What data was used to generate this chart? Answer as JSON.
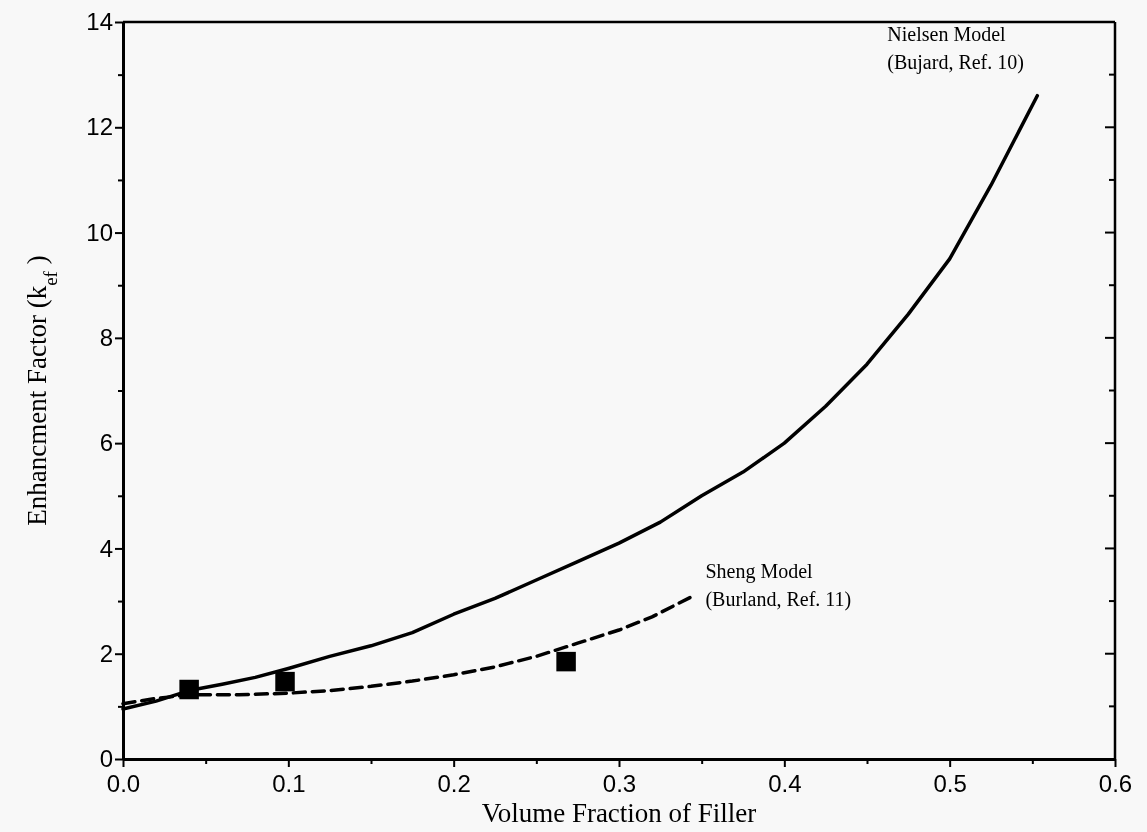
{
  "chart_data": {
    "type": "line",
    "xlabel": "Volume Fraction of Filler",
    "ylabel": "Enhancment Factor (k$_{ef}$ )",
    "xlim": [
      0,
      0.6
    ],
    "ylim": [
      0,
      14
    ],
    "xticks": [
      {
        "value": 0,
        "label": "0.0"
      },
      {
        "value": 0.05,
        "label": null
      },
      {
        "value": 0.1,
        "label": "0.1"
      },
      {
        "value": 0.15,
        "label": null
      },
      {
        "value": 0.2,
        "label": "0.2"
      },
      {
        "value": 0.25,
        "label": null
      },
      {
        "value": 0.3,
        "label": "0.3"
      },
      {
        "value": 0.35,
        "label": null
      },
      {
        "value": 0.4,
        "label": "0.4"
      },
      {
        "value": 0.45,
        "label": null
      },
      {
        "value": 0.5,
        "label": "0.5"
      },
      {
        "value": 0.55,
        "label": null
      },
      {
        "value": 0.6,
        "label": "0.6"
      }
    ],
    "yticks": [
      0,
      {
        "value": 1,
        "label": null
      },
      2,
      {
        "value": 3,
        "label": null
      },
      4,
      {
        "value": 5,
        "label": null
      },
      6,
      {
        "value": 7,
        "label": null
      },
      8,
      {
        "value": 9,
        "label": null
      },
      10,
      {
        "value": 11,
        "label": null
      },
      12,
      {
        "value": 13,
        "label": null
      },
      14
    ],
    "grid": false,
    "legend": false,
    "series": [
      {
        "name": "Nielsen Model\n(Bujard, Ref. 10)",
        "color": "#000000",
        "line_style": "solid",
        "marker": "none",
        "x": [
          0,
          0.02,
          0.04,
          0.06,
          0.08,
          0.1,
          0.125,
          0.15,
          0.175,
          0.2,
          0.225,
          0.25,
          0.275,
          0.3,
          0.325,
          0.35,
          0.375,
          0.4,
          0.425,
          0.45,
          0.475,
          0.5,
          0.525,
          0.553
        ],
        "values": [
          0.95,
          1.1,
          1.3,
          1.42,
          1.55,
          1.72,
          1.95,
          2.15,
          2.4,
          2.75,
          3.05,
          3.4,
          3.75,
          4.1,
          4.5,
          5.0,
          5.45,
          6.0,
          6.7,
          7.5,
          8.45,
          9.5,
          10.9,
          12.6
        ]
      },
      {
        "name": "Sheng Model\n(Burland, Ref. 11)",
        "color": "#000000",
        "line_style": "dashed",
        "marker": "none",
        "x": [
          0,
          0.02,
          0.04,
          0.07,
          0.1,
          0.125,
          0.15,
          0.175,
          0.2,
          0.225,
          0.25,
          0.275,
          0.3,
          0.32,
          0.345
        ],
        "values": [
          1.05,
          1.15,
          1.22,
          1.22,
          1.25,
          1.3,
          1.38,
          1.48,
          1.6,
          1.75,
          1.95,
          2.2,
          2.45,
          2.7,
          3.1
        ]
      },
      {
        "type": "scatter",
        "color": "#000000",
        "marker": "square",
        "x": [
          0.04,
          0.098,
          0.268
        ],
        "values": [
          1.32,
          1.47,
          1.85
        ]
      }
    ]
  }
}
